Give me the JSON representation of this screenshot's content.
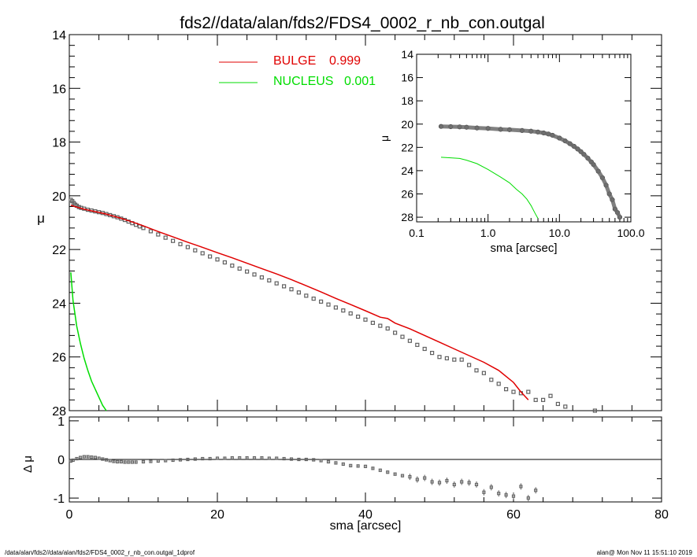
{
  "title": "fds2//data/alan/fds2/FDS4_0002_r_nb_con.outgal",
  "footer": {
    "left": "/data/alan/fds2//data/alan/fds2/FDS4_0002_r_nb_con.outgal_1dprof",
    "right": "alan@  Mon Nov 11 15:51:10 2019"
  },
  "colors": {
    "data": "#606060",
    "bulge": "#e00000",
    "nucleus": "#00dd00",
    "axes": "#000000"
  },
  "chart_data": [
    {
      "id": "main",
      "type": "scatter",
      "ylabel": "μ",
      "xlim": [
        0,
        80
      ],
      "ylim": [
        28,
        14
      ],
      "xticks": [
        0,
        20,
        40,
        60,
        80
      ],
      "yticks": [
        14,
        16,
        18,
        20,
        22,
        24,
        26,
        28
      ],
      "legend_placement": "top-center",
      "legend": [
        {
          "name": "BULGE",
          "value": "0.999",
          "color": "#e00000"
        },
        {
          "name": "NUCLEUS",
          "value": "0.001",
          "color": "#00dd00"
        }
      ],
      "series": [
        {
          "name": "data",
          "marker": "square-errorbar",
          "x": [
            0.2,
            0.4,
            0.6,
            0.8,
            1.0,
            1.3,
            1.6,
            2.0,
            2.5,
            3.0,
            3.5,
            4.0,
            4.5,
            5.0,
            5.5,
            6.0,
            6.5,
            7.0,
            7.5,
            8.0,
            8.5,
            9.0,
            9.5,
            10.0,
            11.0,
            12.0,
            13.0,
            14.0,
            15.0,
            16.0,
            17.0,
            18.0,
            19.0,
            20.0,
            21.0,
            22.0,
            23.0,
            24.0,
            25.0,
            26.0,
            27.0,
            28.0,
            29.0,
            30.0,
            31.0,
            32.0,
            33.0,
            34.0,
            35.0,
            36.0,
            37.0,
            38.0,
            39.0,
            40.0,
            41.0,
            42.0,
            43.0,
            44.0,
            45.0,
            46.0,
            47.0,
            48.0,
            49.0,
            50.0,
            51.0,
            52.0,
            53.0,
            54.0,
            55.0,
            56.0,
            57.0,
            58.0,
            59.0,
            60.0,
            61.0,
            62.0,
            63.0,
            64.0,
            65.0,
            66.0,
            67.0,
            71.0
          ],
          "y": [
            20.15,
            20.2,
            20.27,
            20.33,
            20.37,
            20.42,
            20.45,
            20.48,
            20.52,
            20.55,
            20.58,
            20.61,
            20.64,
            20.68,
            20.72,
            20.76,
            20.8,
            20.85,
            20.9,
            20.96,
            21.02,
            21.08,
            21.14,
            21.2,
            21.32,
            21.44,
            21.56,
            21.68,
            21.8,
            21.91,
            22.03,
            22.14,
            22.26,
            22.37,
            22.48,
            22.6,
            22.71,
            22.82,
            22.93,
            23.04,
            23.15,
            23.26,
            23.37,
            23.48,
            23.6,
            23.72,
            23.83,
            23.94,
            24.05,
            24.16,
            24.27,
            24.38,
            24.5,
            24.61,
            24.73,
            24.84,
            24.94,
            25.1,
            25.25,
            25.4,
            25.55,
            25.7,
            25.85,
            26.0,
            26.05,
            26.1,
            26.1,
            26.3,
            26.5,
            26.6,
            26.85,
            27.0,
            27.2,
            27.3,
            27.35,
            27.3,
            27.6,
            27.6,
            27.45,
            27.75,
            27.85,
            28.0
          ]
        },
        {
          "name": "BULGE",
          "line": true,
          "color": "#e00000",
          "x": [
            0.2,
            0.5,
            1,
            2,
            3,
            4,
            5,
            6,
            7,
            8,
            9,
            10,
            12,
            14,
            16,
            18,
            20,
            22,
            24,
            26,
            28,
            30,
            32,
            34,
            36,
            38,
            40,
            42,
            43,
            44,
            46,
            48,
            50,
            52,
            54,
            56,
            58,
            60,
            61,
            62
          ],
          "y": [
            20.35,
            20.38,
            20.42,
            20.5,
            20.56,
            20.62,
            20.68,
            20.76,
            20.84,
            20.93,
            21.02,
            21.12,
            21.33,
            21.53,
            21.73,
            21.92,
            22.12,
            22.31,
            22.51,
            22.71,
            22.91,
            23.12,
            23.35,
            23.58,
            23.82,
            24.05,
            24.28,
            24.52,
            24.57,
            24.74,
            24.95,
            25.2,
            25.45,
            25.7,
            25.95,
            26.2,
            26.5,
            26.95,
            27.3,
            27.6
          ]
        },
        {
          "name": "NUCLEUS",
          "line": true,
          "color": "#00dd00",
          "x": [
            0.2,
            0.5,
            1,
            1.5,
            2,
            2.5,
            3,
            3.5,
            4,
            4.5,
            5
          ],
          "y": [
            22.85,
            23.9,
            24.85,
            25.5,
            26.05,
            26.5,
            26.9,
            27.2,
            27.5,
            27.8,
            28.0
          ]
        }
      ]
    },
    {
      "id": "residual",
      "type": "scatter",
      "xlabel": "sma [arcsec]",
      "ylabel": "Δ μ",
      "xlim": [
        0,
        80
      ],
      "ylim": [
        -1.1,
        1.1
      ],
      "xticks": [
        0,
        20,
        40,
        60,
        80
      ],
      "yticks": [
        1,
        0,
        -1
      ],
      "zero_line": true,
      "series": [
        {
          "name": "residual",
          "marker": "square-errorbar",
          "x": [
            0.2,
            0.5,
            1.0,
            1.5,
            2.0,
            2.5,
            3.0,
            3.5,
            4.0,
            4.5,
            5.0,
            5.5,
            6.0,
            6.5,
            7.0,
            7.5,
            8.0,
            8.5,
            9.0,
            10,
            11,
            12,
            13,
            14,
            15,
            16,
            17,
            18,
            19,
            20,
            21,
            22,
            23,
            24,
            25,
            26,
            27,
            28,
            29,
            30,
            31,
            32,
            33,
            34,
            35,
            36,
            37,
            38,
            39,
            40,
            41,
            42,
            43,
            44,
            45,
            46,
            47,
            48,
            49,
            50,
            51,
            52,
            53,
            54,
            55,
            56,
            57,
            58,
            59,
            60,
            61,
            62,
            63
          ],
          "y": [
            -0.04,
            -0.02,
            0.02,
            0.05,
            0.07,
            0.07,
            0.06,
            0.05,
            0.03,
            0.01,
            -0.01,
            -0.03,
            -0.05,
            -0.06,
            -0.06,
            -0.07,
            -0.07,
            -0.07,
            -0.07,
            -0.06,
            -0.05,
            -0.04,
            -0.03,
            -0.02,
            -0.01,
            0.0,
            0.01,
            0.02,
            0.02,
            0.03,
            0.03,
            0.04,
            0.04,
            0.04,
            0.04,
            0.04,
            0.03,
            0.03,
            0.02,
            0.01,
            0.0,
            0.0,
            -0.01,
            -0.03,
            -0.06,
            -0.09,
            -0.12,
            -0.16,
            -0.17,
            -0.18,
            -0.23,
            -0.28,
            -0.33,
            -0.38,
            -0.42,
            -0.45,
            -0.52,
            -0.48,
            -0.58,
            -0.6,
            -0.55,
            -0.65,
            -0.58,
            -0.6,
            -0.65,
            -0.85,
            -0.72,
            -0.88,
            -0.92,
            -0.95,
            -0.7,
            -1.0,
            -0.8
          ]
        }
      ]
    },
    {
      "id": "inset",
      "type": "scatter",
      "xscale": "log",
      "xlabel": "sma [arcsec]",
      "ylabel": "μ",
      "xlim": [
        0.1,
        100
      ],
      "ylim": [
        28.4,
        14
      ],
      "xticks": [
        0.1,
        1,
        10,
        100
      ],
      "xtick_labels": [
        "0.1",
        "1.0",
        "10.0",
        "100.0"
      ],
      "yticks": [
        14,
        16,
        18,
        20,
        22,
        24,
        26,
        28
      ],
      "series": [
        {
          "name": "data",
          "marker": "circle-thick",
          "x": [
            0.22,
            0.3,
            0.4,
            0.5,
            0.7,
            1.0,
            1.5,
            2,
            3,
            4,
            5,
            6,
            7,
            8,
            10,
            12,
            14,
            16,
            18,
            20,
            22,
            25,
            28,
            30,
            35,
            40,
            45,
            50,
            55,
            60,
            65,
            70
          ],
          "y": [
            20.2,
            20.22,
            20.24,
            20.27,
            20.33,
            20.37,
            20.45,
            20.48,
            20.55,
            20.61,
            20.68,
            20.76,
            20.85,
            20.96,
            21.2,
            21.44,
            21.68,
            21.91,
            22.14,
            22.37,
            22.6,
            22.93,
            23.26,
            23.48,
            24.05,
            24.61,
            25.25,
            26.0,
            26.5,
            27.3,
            27.6,
            28.0
          ]
        },
        {
          "name": "NUCLEUS",
          "line": true,
          "color": "#00dd00",
          "x": [
            0.22,
            0.3,
            0.4,
            0.5,
            0.7,
            1.0,
            1.5,
            2,
            2.5,
            3,
            3.5,
            4,
            4.5,
            5
          ],
          "y": [
            22.85,
            22.9,
            22.95,
            23.1,
            23.4,
            23.9,
            24.55,
            25.05,
            25.6,
            26.0,
            26.45,
            27.0,
            27.6,
            28.1
          ]
        }
      ]
    }
  ]
}
